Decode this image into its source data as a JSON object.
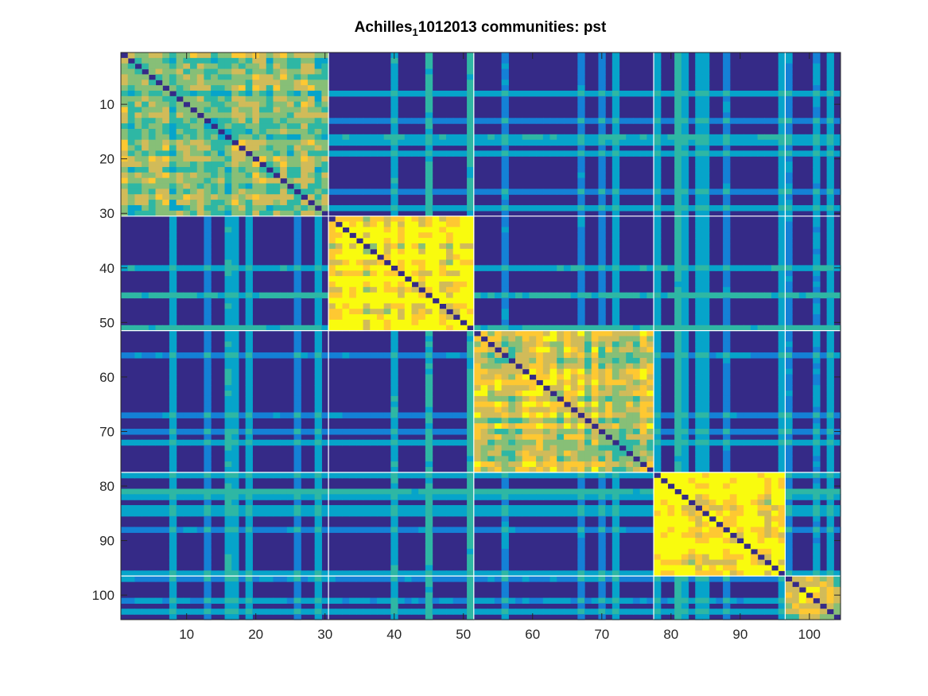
{
  "chart_data": {
    "type": "heatmap",
    "title": {
      "part1": "Achilles",
      "subscript": "1",
      "part2": "1012013 communities: pst"
    },
    "n": 104,
    "x_ticks": [
      "10",
      "20",
      "30",
      "40",
      "50",
      "60",
      "70",
      "80",
      "90",
      "100"
    ],
    "y_ticks": [
      "10",
      "20",
      "30",
      "40",
      "50",
      "60",
      "70",
      "80",
      "90",
      "100"
    ],
    "tick_values": [
      10,
      20,
      30,
      40,
      50,
      60,
      70,
      80,
      90,
      100
    ],
    "xlim": [
      0.5,
      104.5
    ],
    "ylim": [
      0.5,
      104.5
    ],
    "community_boundaries": [
      30.5,
      51.5,
      77.5,
      96.5
    ],
    "communities": [
      {
        "start": 1,
        "end": 30
      },
      {
        "start": 31,
        "end": 51
      },
      {
        "start": 52,
        "end": 77
      },
      {
        "start": 78,
        "end": 96
      },
      {
        "start": 97,
        "end": 104
      }
    ],
    "diagonal_block_level": [
      0.6,
      0.9,
      0.7,
      0.95,
      0.75
    ],
    "colormap": [
      "#352a87",
      "#0f5cdd",
      "#1481d6",
      "#06a4ca",
      "#2eb7a4",
      "#87bf77",
      "#d1bb59",
      "#fec832",
      "#f9fb0e"
    ],
    "boundary_color": "#ffffff",
    "axis_color": "#262626"
  }
}
